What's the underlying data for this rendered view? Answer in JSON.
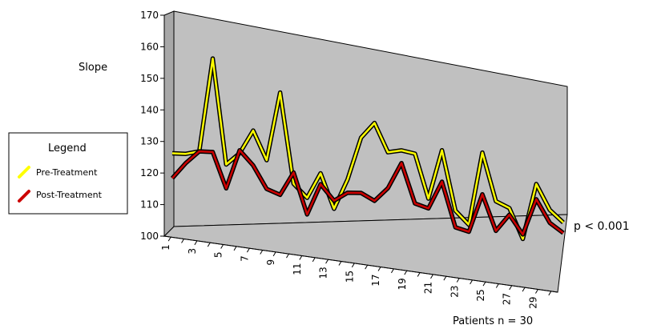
{
  "chart_data": {
    "type": "line",
    "ylabel": "Slope",
    "xlabel": "Patients n = 30",
    "annotation": "p < 0.001",
    "ylim": [
      100,
      170
    ],
    "y_ticks": [
      100,
      110,
      120,
      130,
      140,
      150,
      160,
      170
    ],
    "x_tick_labels": [
      "1",
      "3",
      "5",
      "7",
      "9",
      "11",
      "13",
      "15",
      "17",
      "19",
      "21",
      "23",
      "25",
      "27",
      "29"
    ],
    "x": [
      1,
      2,
      3,
      4,
      5,
      6,
      7,
      8,
      9,
      10,
      11,
      12,
      13,
      14,
      15,
      16,
      17,
      18,
      19,
      20,
      21,
      22,
      23,
      24,
      25,
      26,
      27,
      28,
      29,
      30
    ],
    "legend": {
      "title": "Legend",
      "placement": "left"
    },
    "series": [
      {
        "name": "Pre-Treatment",
        "color": "#ffff00",
        "values": [
          125,
          125,
          126,
          157,
          122,
          126,
          134,
          124,
          148,
          116,
          111,
          120,
          107,
          118,
          134,
          140,
          129,
          130,
          129,
          111,
          131,
          106,
          100,
          131,
          110,
          107,
          93,
          118,
          106,
          100
        ]
      },
      {
        "name": "Post-Treatment",
        "color": "#cc0000",
        "values": [
          117,
          122,
          126,
          126,
          114,
          127,
          122,
          114,
          112,
          120,
          105,
          116,
          110,
          113,
          113,
          110,
          115,
          125,
          109,
          107,
          118,
          99,
          97,
          113,
          97,
          104,
          95,
          111,
          100,
          95
        ]
      }
    ]
  }
}
